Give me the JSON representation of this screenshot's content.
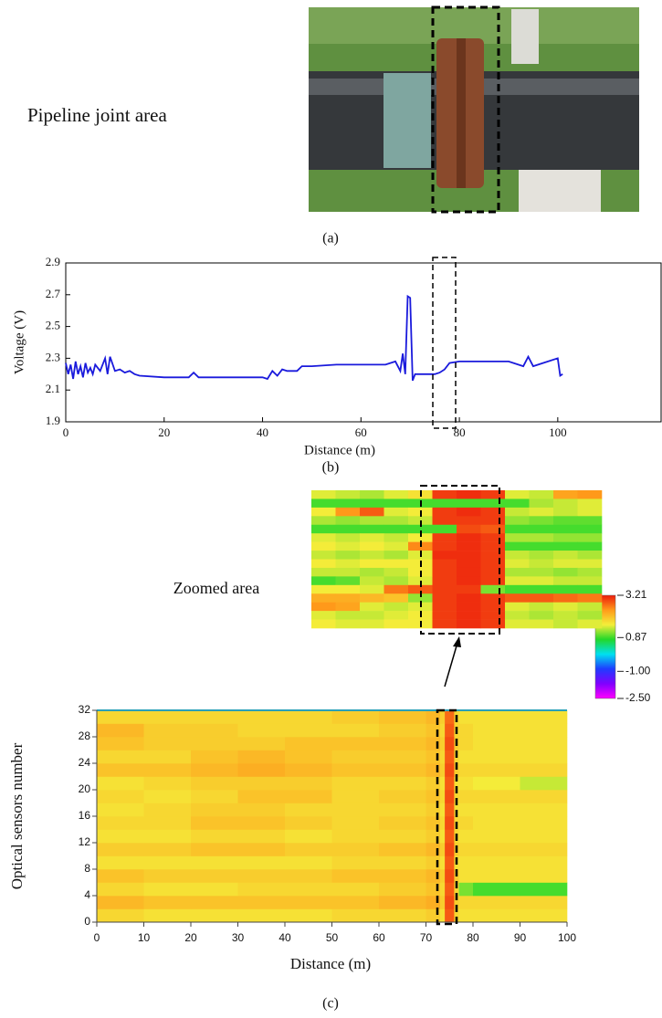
{
  "photo": {
    "label": "Pipeline joint area",
    "caption": "(a)"
  },
  "chart_data": [
    {
      "type": "line",
      "caption": "(b)",
      "xlabel": "Distance (m)",
      "ylabel": "Voltage (V)",
      "color": "#1a1adc",
      "xlim": [
        0,
        121
      ],
      "xticks": [
        0,
        20,
        40,
        60,
        80,
        100
      ],
      "ylim": [
        1.9,
        2.9
      ],
      "yticks": [
        1.9,
        2.1,
        2.3,
        2.5,
        2.7,
        2.9
      ],
      "x": [
        0,
        0.5,
        1,
        1.5,
        2,
        2.5,
        3,
        3.5,
        4,
        4.5,
        5,
        5.5,
        6,
        7,
        8,
        8.5,
        9,
        10,
        11,
        12,
        13,
        14,
        15,
        20,
        25,
        26,
        27,
        30,
        35,
        40,
        41,
        42,
        43,
        44,
        45,
        47,
        48,
        49,
        50,
        55,
        60,
        65,
        67,
        68,
        68.5,
        69,
        69.5,
        70,
        70.5,
        71,
        72,
        75,
        76,
        77,
        78,
        80,
        85,
        90,
        93,
        94,
        95,
        97,
        100,
        100.5,
        101
      ],
      "values": [
        2.27,
        2.2,
        2.26,
        2.17,
        2.28,
        2.2,
        2.25,
        2.18,
        2.27,
        2.21,
        2.24,
        2.2,
        2.26,
        2.22,
        2.3,
        2.2,
        2.31,
        2.22,
        2.23,
        2.21,
        2.22,
        2.2,
        2.19,
        2.18,
        2.18,
        2.21,
        2.18,
        2.18,
        2.18,
        2.18,
        2.17,
        2.22,
        2.19,
        2.23,
        2.22,
        2.22,
        2.25,
        2.25,
        2.25,
        2.26,
        2.26,
        2.26,
        2.28,
        2.22,
        2.33,
        2.2,
        2.69,
        2.68,
        2.16,
        2.2,
        2.2,
        2.2,
        2.21,
        2.23,
        2.27,
        2.28,
        2.28,
        2.28,
        2.25,
        2.31,
        2.25,
        2.27,
        2.3,
        2.19,
        2.2
      ]
    },
    {
      "type": "heatmap",
      "caption": "(c)",
      "xlabel": "Distance (m)",
      "ylabel": "Optical sensors number",
      "xlim": [
        0,
        100
      ],
      "xticks": [
        0,
        10,
        20,
        30,
        40,
        50,
        60,
        70,
        80,
        90,
        100
      ],
      "ylim": [
        0,
        32
      ],
      "yticks": [
        0,
        4,
        8,
        12,
        16,
        20,
        24,
        28,
        32
      ],
      "clim": [
        -2.5,
        3.21
      ],
      "cticks": [
        3.21,
        0.87,
        {
          "value": -1,
          "label": "-1.00"
        },
        {
          "value": -2.5,
          "label": "-2.50"
        }
      ],
      "colors": [
        "#ff00ff",
        "#8000ff",
        "#1f3cff",
        "#00e0f0",
        "#22d82a",
        "#f4ee3a",
        "#ff9a1a",
        "#ec1c0c"
      ],
      "xbins": [
        0,
        10,
        20,
        30,
        40,
        50,
        60,
        70,
        73,
        74,
        76,
        77,
        80,
        90,
        100
      ],
      "ybins": [
        0,
        2,
        4,
        6,
        8,
        10,
        12,
        14,
        16,
        18,
        20,
        22,
        24,
        26,
        28,
        30,
        32
      ],
      "values": [
        [
          1.8,
          1.7,
          1.7,
          1.7,
          1.7,
          1.8,
          1.8,
          1.9,
          1.7,
          2.8,
          1.8,
          1.7,
          1.7,
          1.7
        ],
        [
          2.1,
          2.0,
          2.0,
          2.0,
          2.0,
          2.0,
          2.1,
          2.2,
          1.9,
          2.9,
          1.9,
          1.8,
          1.8,
          1.8
        ],
        [
          1.8,
          1.7,
          1.7,
          1.8,
          1.8,
          1.8,
          1.9,
          2.0,
          1.8,
          2.8,
          1.8,
          1.1,
          0.9,
          0.9
        ],
        [
          2.0,
          1.9,
          1.9,
          1.9,
          1.9,
          2.0,
          2.0,
          2.1,
          1.9,
          2.9,
          1.9,
          1.7,
          1.7,
          1.7
        ],
        [
          1.7,
          1.7,
          1.7,
          1.7,
          1.7,
          1.8,
          1.8,
          1.9,
          1.7,
          2.8,
          1.7,
          1.7,
          1.7,
          1.7
        ],
        [
          1.9,
          1.9,
          2.0,
          2.0,
          1.9,
          1.9,
          2.0,
          2.1,
          1.9,
          2.9,
          1.9,
          1.8,
          1.8,
          1.8
        ],
        [
          1.7,
          1.7,
          1.8,
          1.8,
          1.7,
          1.8,
          1.8,
          1.9,
          1.7,
          2.8,
          1.8,
          1.7,
          1.7,
          1.7
        ],
        [
          1.8,
          1.8,
          2.0,
          2.0,
          1.9,
          1.8,
          1.9,
          2.0,
          1.8,
          2.9,
          1.8,
          1.8,
          1.7,
          1.7
        ],
        [
          1.7,
          1.8,
          1.9,
          1.9,
          1.8,
          1.8,
          1.8,
          1.9,
          1.7,
          2.8,
          1.7,
          1.7,
          1.7,
          1.7
        ],
        [
          1.8,
          1.7,
          1.8,
          2.0,
          2.0,
          1.8,
          1.9,
          2.0,
          1.8,
          2.9,
          1.8,
          1.8,
          1.8,
          1.8
        ],
        [
          1.7,
          1.8,
          1.9,
          1.9,
          1.9,
          1.8,
          1.8,
          1.9,
          1.7,
          2.8,
          1.7,
          1.7,
          1.6,
          1.4
        ],
        [
          2.0,
          2.0,
          2.1,
          2.2,
          2.1,
          2.0,
          2.0,
          2.1,
          1.9,
          2.9,
          1.9,
          1.8,
          1.8,
          1.8
        ],
        [
          1.8,
          1.8,
          2.0,
          2.1,
          2.0,
          1.9,
          1.9,
          2.0,
          1.8,
          2.8,
          1.8,
          1.7,
          1.7,
          1.7
        ],
        [
          2.0,
          1.9,
          1.9,
          1.9,
          2.0,
          2.0,
          2.0,
          2.1,
          1.9,
          2.9,
          1.9,
          1.8,
          1.7,
          1.7
        ],
        [
          2.1,
          1.9,
          1.9,
          1.8,
          1.8,
          1.8,
          1.9,
          2.0,
          1.8,
          2.8,
          1.8,
          1.8,
          1.7,
          1.7
        ],
        [
          1.8,
          1.8,
          1.8,
          1.8,
          1.8,
          1.9,
          2.0,
          2.1,
          1.9,
          2.7,
          1.8,
          1.7,
          1.7,
          1.7
        ]
      ]
    },
    {
      "type": "zoom",
      "title": "Zoomed area",
      "values": [
        [
          1.5,
          1.4,
          1.3,
          1.5,
          1.7,
          3.0,
          3.1,
          3.0,
          1.5,
          1.4,
          2.3,
          2.4
        ],
        [
          0.9,
          0.9,
          0.9,
          0.9,
          0.9,
          0.9,
          0.9,
          0.9,
          0.9,
          1.3,
          1.4,
          1.5
        ],
        [
          1.6,
          2.4,
          2.8,
          1.5,
          1.6,
          3.0,
          3.1,
          3.0,
          1.4,
          1.5,
          1.4,
          1.5
        ],
        [
          1.3,
          1.2,
          1.3,
          1.3,
          1.4,
          3.0,
          3.0,
          3.0,
          1.2,
          1.1,
          1.0,
          1.0
        ],
        [
          0.9,
          0.9,
          0.9,
          0.9,
          0.9,
          0.9,
          2.9,
          2.8,
          0.9,
          0.9,
          0.9,
          0.9
        ],
        [
          1.5,
          1.4,
          1.5,
          1.4,
          1.6,
          3.0,
          3.1,
          3.0,
          1.3,
          1.3,
          1.2,
          1.2
        ],
        [
          1.6,
          1.5,
          1.6,
          1.5,
          2.5,
          3.0,
          3.1,
          3.0,
          0.9,
          0.9,
          0.9,
          0.9
        ],
        [
          1.4,
          1.3,
          1.4,
          1.3,
          1.5,
          3.1,
          3.1,
          3.0,
          1.4,
          1.3,
          1.4,
          1.3
        ],
        [
          1.6,
          1.5,
          1.6,
          1.6,
          1.6,
          3.0,
          3.1,
          3.0,
          1.5,
          1.4,
          1.5,
          1.5
        ],
        [
          1.4,
          1.4,
          1.3,
          1.4,
          1.6,
          3.0,
          3.1,
          3.0,
          1.3,
          1.3,
          1.2,
          1.3
        ],
        [
          0.9,
          1.0,
          1.4,
          1.3,
          1.5,
          3.0,
          3.1,
          3.0,
          1.5,
          1.5,
          1.4,
          1.4
        ],
        [
          1.6,
          1.6,
          1.5,
          2.6,
          2.8,
          3.0,
          3.0,
          1.1,
          0.9,
          0.9,
          0.9,
          0.9
        ],
        [
          2.2,
          2.2,
          2.1,
          2.0,
          1.2,
          3.0,
          3.1,
          3.0,
          2.8,
          2.8,
          2.7,
          2.6
        ],
        [
          2.4,
          2.3,
          1.5,
          1.4,
          1.5,
          3.0,
          3.1,
          3.0,
          1.5,
          1.4,
          1.5,
          1.4
        ],
        [
          1.5,
          1.4,
          1.4,
          1.5,
          1.6,
          3.0,
          3.1,
          3.0,
          1.4,
          1.3,
          1.4,
          1.3
        ],
        [
          1.6,
          1.5,
          1.5,
          1.6,
          1.6,
          3.0,
          3.1,
          3.0,
          1.5,
          1.5,
          1.4,
          1.5
        ]
      ]
    }
  ]
}
